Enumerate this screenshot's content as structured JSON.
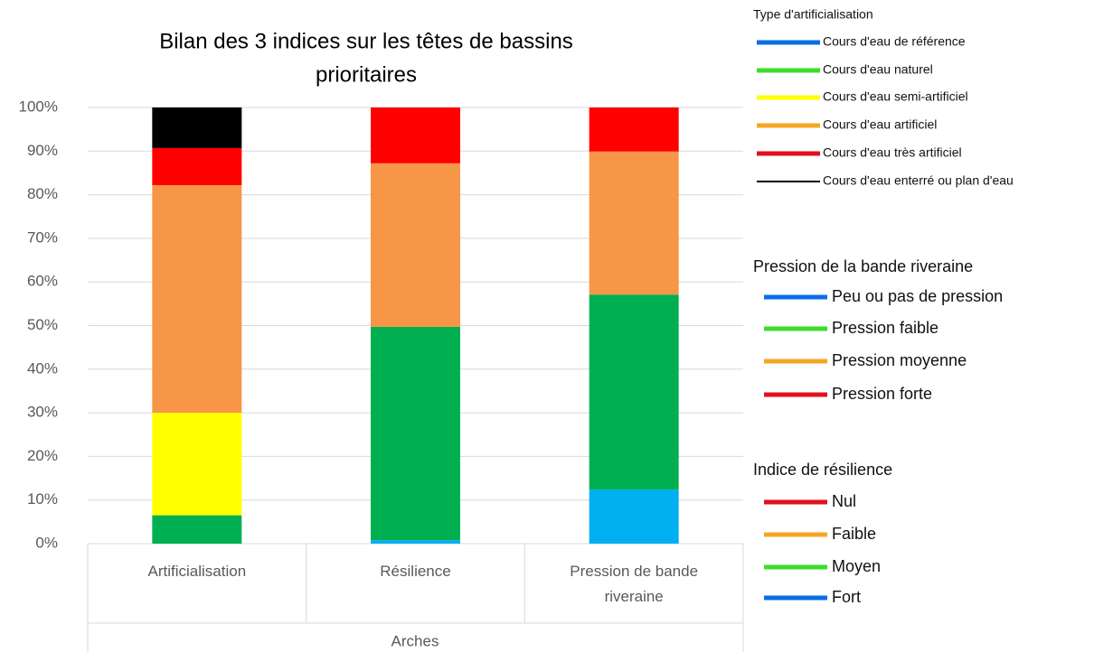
{
  "chart_data": {
    "type": "stacked_bar",
    "title": "Bilan des 3 indices sur les têtes de bassins",
    "subtitle": "prioritaires",
    "categories": [
      "Artificialisation",
      "Résilience",
      "Pression de bande riveraine"
    ],
    "x_label": "Arches",
    "series": [
      {
        "color": "#00b0f0",
        "values": [
          null,
          0.8,
          12.4
        ]
      },
      {
        "color": "#00b050",
        "values": [
          6.5,
          48.9,
          44.7
        ]
      },
      {
        "color": "#ffff00",
        "values": [
          23.5,
          null,
          null
        ]
      },
      {
        "color": "#f79646",
        "values": [
          52.2,
          37.5,
          32.8
        ]
      },
      {
        "color": "#ff0000",
        "values": [
          8.5,
          12.8,
          10.1
        ]
      },
      {
        "color": "#000000",
        "values": [
          9.3,
          null,
          null
        ]
      }
    ],
    "ylim": [
      0,
      100
    ],
    "yticks": [
      {
        "value": 0,
        "label": "0%"
      },
      {
        "value": 10,
        "label": "10%"
      },
      {
        "value": 20,
        "label": "20%"
      },
      {
        "value": 30,
        "label": "30%"
      },
      {
        "value": 40,
        "label": "40%"
      },
      {
        "value": 50,
        "label": "50%"
      },
      {
        "value": 60,
        "label": "60%"
      },
      {
        "value": 70,
        "label": "70%"
      },
      {
        "value": 80,
        "label": "80%"
      },
      {
        "value": 90,
        "label": "90%"
      },
      {
        "value": 100,
        "label": "100%"
      }
    ],
    "grid": true,
    "legend_groups": [
      {
        "title": "Type d'artificialisation",
        "items": [
          {
            "label": "Cours d'eau de référence",
            "color": "#0a6ee6"
          },
          {
            "label": "Cours d'eau naturel",
            "color": "#3ddc2c"
          },
          {
            "label": "Cours d'eau semi-artificiel",
            "color": "#ffff00"
          },
          {
            "label": "Cours d'eau artificiel",
            "color": "#f5a623"
          },
          {
            "label": "Cours d'eau très artificiel",
            "color": "#e3101e"
          },
          {
            "label": "Cours d'eau enterré ou plan d'eau",
            "color": "#000000"
          }
        ]
      },
      {
        "title": "Pression de la bande riveraine",
        "items": [
          {
            "label": "Peu ou pas de pression",
            "color": "#0a6ee6"
          },
          {
            "label": "Pression faible",
            "color": "#3ddc2c"
          },
          {
            "label": "Pression moyenne",
            "color": "#f5a623"
          },
          {
            "label": "Pression forte",
            "color": "#e3101e"
          }
        ]
      },
      {
        "title": "Indice de résilience",
        "items": [
          {
            "label": "Nul",
            "color": "#e3101e"
          },
          {
            "label": "Faible",
            "color": "#f5a623"
          },
          {
            "label": "Moyen",
            "color": "#3ddc2c"
          },
          {
            "label": "Fort",
            "color": "#0a6ee6"
          }
        ]
      }
    ]
  }
}
